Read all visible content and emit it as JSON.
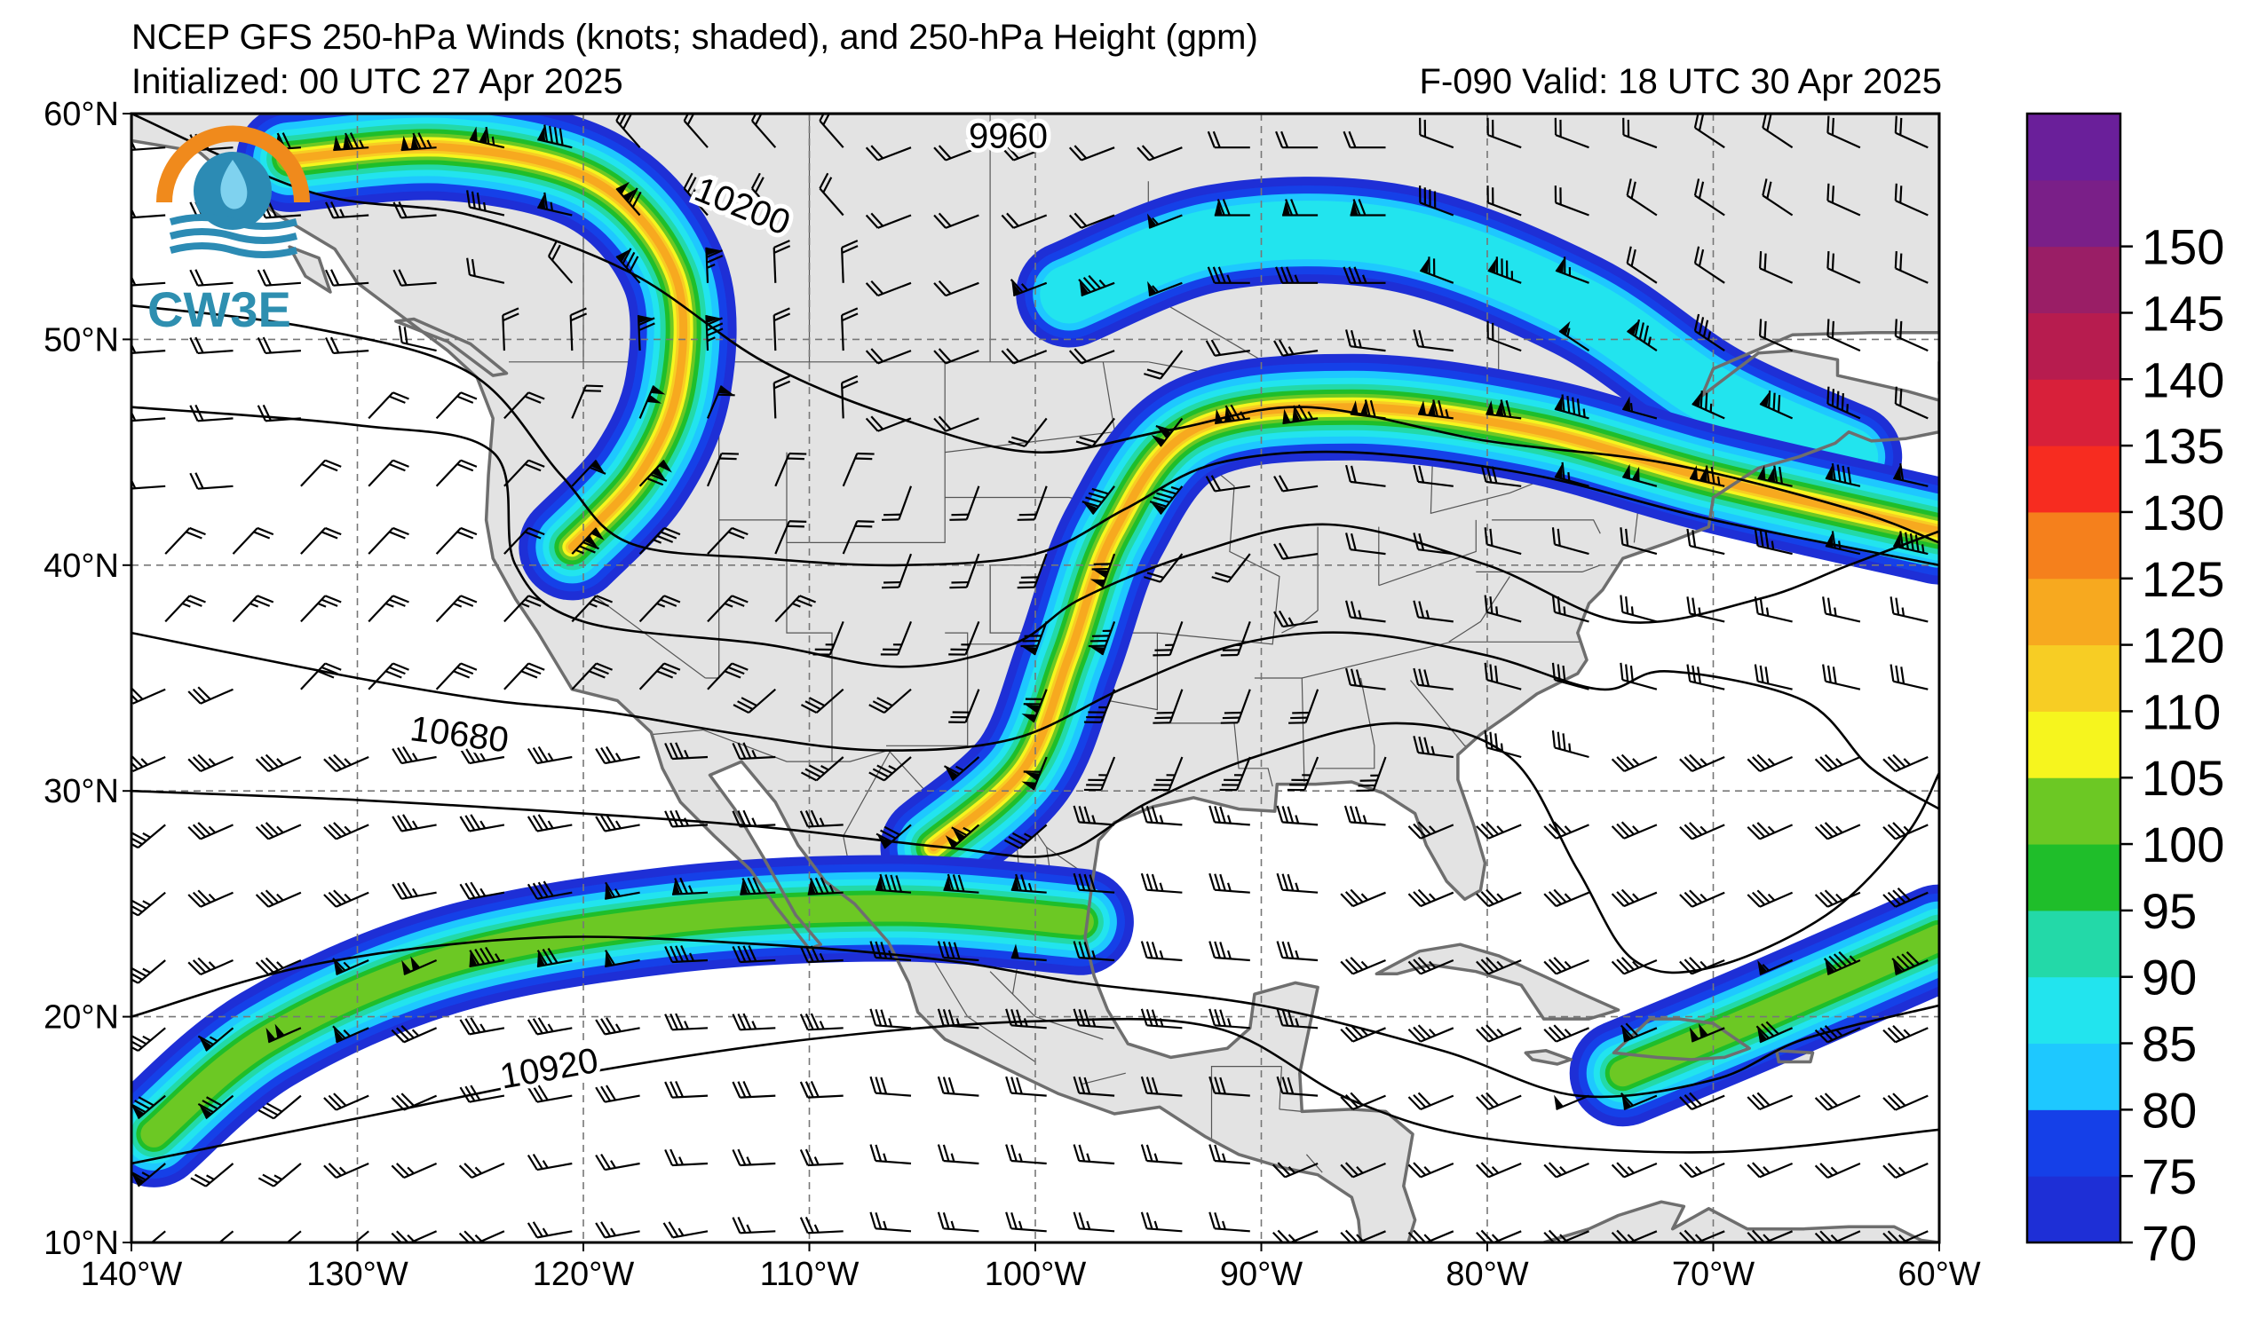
{
  "title": {
    "line1": "NCEP GFS 250-hPa Winds (knots; shaded), and 250-hPa Height (gpm)",
    "line2": "Initialized: 00 UTC 27 Apr 2025",
    "valid": "F-090  Valid: 18 UTC 30 Apr 2025"
  },
  "logo": {
    "text": "CW3E",
    "icon": "cw3e-logo-icon"
  },
  "map": {
    "lon_range": [
      -140,
      -60
    ],
    "lat_range": [
      10,
      60
    ],
    "lon_ticks": [
      "140°W",
      "130°W",
      "120°W",
      "110°W",
      "100°W",
      "90°W",
      "80°W",
      "70°W",
      "60°W"
    ],
    "lat_ticks": [
      "60°N",
      "50°N",
      "40°N",
      "30°N",
      "20°N",
      "10°N"
    ],
    "grid": "dashed",
    "land_color": "#e3e3e3",
    "ocean_color": "#ffffff"
  },
  "contour_labels": [
    "9960",
    "10200",
    "10680",
    "10920"
  ],
  "colorbar": {
    "levels": [
      "70",
      "75",
      "80",
      "85",
      "90",
      "95",
      "100",
      "105",
      "110",
      "120",
      "125",
      "130",
      "135",
      "140",
      "145",
      "150"
    ],
    "label_levels": [
      "70",
      "75",
      "80",
      "85",
      "90",
      "95",
      "100",
      "105",
      "110",
      "120",
      "125",
      "130",
      "135",
      "140",
      "145",
      "150"
    ],
    "colors": [
      "#1e2fd6",
      "#1540e8",
      "#1ec8ff",
      "#22e4ee",
      "#23d9a8",
      "#1fbe2a",
      "#6cc824",
      "#f6f51e",
      "#f7cd24",
      "#f7a91f",
      "#f5801c",
      "#f72c20",
      "#d8203a",
      "#b71c4f",
      "#9a1e66",
      "#7a1f88",
      "#6a1f9a"
    ]
  },
  "jets": [
    {
      "name": "jet-west-coast-trough",
      "axis": [
        [
          -133,
          58
        ],
        [
          -126,
          58.5
        ],
        [
          -119.5,
          57
        ],
        [
          -116,
          53
        ],
        [
          -115.8,
          48
        ],
        [
          -117.5,
          44
        ],
        [
          -120.5,
          40.8
        ]
      ],
      "max_kt": 125
    },
    {
      "name": "jet-northern-canada",
      "axis": [
        [
          -98.5,
          52
        ],
        [
          -92,
          54.5
        ],
        [
          -84,
          54.5
        ],
        [
          -76,
          51.5
        ],
        [
          -70,
          47.5
        ],
        [
          -64,
          44.8
        ]
      ],
      "max_kt": 85
    },
    {
      "name": "jet-central-us",
      "axis": [
        [
          -104.5,
          27.5
        ],
        [
          -100.5,
          31
        ],
        [
          -98.5,
          36
        ],
        [
          -96.5,
          41.5
        ],
        [
          -93,
          46
        ],
        [
          -86,
          47
        ],
        [
          -78,
          46
        ],
        [
          -70,
          43.8
        ],
        [
          -60,
          41.5
        ]
      ],
      "max_kt": 125
    },
    {
      "name": "jet-subtropical",
      "axis": [
        [
          -139,
          14.8
        ],
        [
          -134,
          19
        ],
        [
          -126,
          22.5
        ],
        [
          -116,
          24.3
        ],
        [
          -106,
          24.8
        ],
        [
          -98,
          24.2
        ]
      ],
      "max_kt": 100
    },
    {
      "name": "jet-atlantic",
      "axis": [
        [
          -74,
          17.5
        ],
        [
          -68,
          20
        ],
        [
          -60,
          23.5
        ]
      ],
      "max_kt": 100
    }
  ],
  "height_contours": [
    [
      [
        -140,
        60
      ],
      [
        -132,
        56.5
      ],
      [
        -125,
        55.5
      ],
      [
        -118,
        53
      ],
      [
        -112,
        49
      ],
      [
        -106,
        46.5
      ],
      [
        -100,
        45
      ],
      [
        -94,
        46
      ],
      [
        -88,
        47
      ],
      [
        -80,
        45.5
      ],
      [
        -72,
        44.5
      ],
      [
        -64,
        42.5
      ],
      [
        -60,
        41
      ]
    ],
    [
      [
        -140,
        51.5
      ],
      [
        -132,
        50.5
      ],
      [
        -125,
        48.5
      ],
      [
        -121,
        44
      ],
      [
        -118,
        41
      ],
      [
        -112,
        40.3
      ],
      [
        -106,
        40
      ],
      [
        -100,
        40.5
      ],
      [
        -96,
        42.5
      ],
      [
        -92,
        44.5
      ],
      [
        -86,
        45
      ],
      [
        -78,
        44
      ],
      [
        -70,
        42
      ],
      [
        -60,
        40
      ]
    ],
    [
      [
        -140,
        47
      ],
      [
        -130,
        46.2
      ],
      [
        -124,
        45
      ],
      [
        -123,
        40
      ],
      [
        -120,
        37.5
      ],
      [
        -112,
        36.5
      ],
      [
        -106,
        35.5
      ],
      [
        -101,
        36.5
      ],
      [
        -98,
        38.5
      ],
      [
        -93,
        40.5
      ],
      [
        -87,
        41.8
      ],
      [
        -80,
        40
      ],
      [
        -74,
        37.5
      ],
      [
        -68,
        38.5
      ],
      [
        -64,
        40
      ],
      [
        -60,
        41.5
      ]
    ],
    [
      [
        -140,
        37
      ],
      [
        -130,
        35
      ],
      [
        -124,
        34
      ],
      [
        -119,
        33.5
      ],
      [
        -113,
        32.5
      ],
      [
        -107,
        31.8
      ],
      [
        -101,
        32.3
      ],
      [
        -96,
        34.6
      ],
      [
        -91,
        36.5
      ],
      [
        -86,
        37
      ],
      [
        -80,
        36
      ],
      [
        -75,
        34.5
      ],
      [
        -72,
        35.3
      ],
      [
        -66,
        34
      ],
      [
        -63,
        31
      ],
      [
        -60,
        29.2
      ]
    ],
    [
      [
        -140,
        30
      ],
      [
        -130,
        29.6
      ],
      [
        -120,
        29
      ],
      [
        -112,
        28.4
      ],
      [
        -104,
        27.5
      ],
      [
        -99,
        27.2
      ],
      [
        -95,
        29.5
      ],
      [
        -90,
        31.6
      ],
      [
        -84,
        33
      ],
      [
        -79,
        31.5
      ],
      [
        -76,
        26.5
      ],
      [
        -73.5,
        22.5
      ],
      [
        -70,
        22.2
      ],
      [
        -65,
        24.5
      ],
      [
        -61.5,
        28
      ],
      [
        -60,
        30.8
      ]
    ],
    [
      [
        -140,
        20
      ],
      [
        -132,
        22.3
      ],
      [
        -122,
        23.5
      ],
      [
        -112,
        23.2
      ],
      [
        -104,
        22.5
      ],
      [
        -98,
        21.5
      ],
      [
        -90,
        20.5
      ],
      [
        -82,
        18.5
      ],
      [
        -76,
        16.5
      ],
      [
        -70,
        17.2
      ],
      [
        -66,
        19
      ],
      [
        -60,
        20.5
      ]
    ],
    [
      [
        -140,
        13.5
      ],
      [
        -130,
        15.5
      ],
      [
        -120,
        17.5
      ],
      [
        -110,
        19
      ],
      [
        -100,
        19.8
      ],
      [
        -92,
        19.5
      ],
      [
        -86,
        16.3
      ],
      [
        -80,
        14.6
      ],
      [
        -70,
        14
      ],
      [
        -60,
        15
      ]
    ]
  ],
  "barb_field": {
    "lon_step": 3,
    "lat_step": 3,
    "samples": [
      {
        "lat": 57,
        "lon": -125,
        "dir": 270,
        "speed": 110
      },
      {
        "lat": 45,
        "lon": -90,
        "dir": 280,
        "speed": 115
      },
      {
        "lat": 24,
        "lon": -110,
        "dir": 255,
        "speed": 90
      },
      {
        "lat": 15,
        "lon": -100,
        "dir": 260,
        "speed": 35
      }
    ]
  }
}
